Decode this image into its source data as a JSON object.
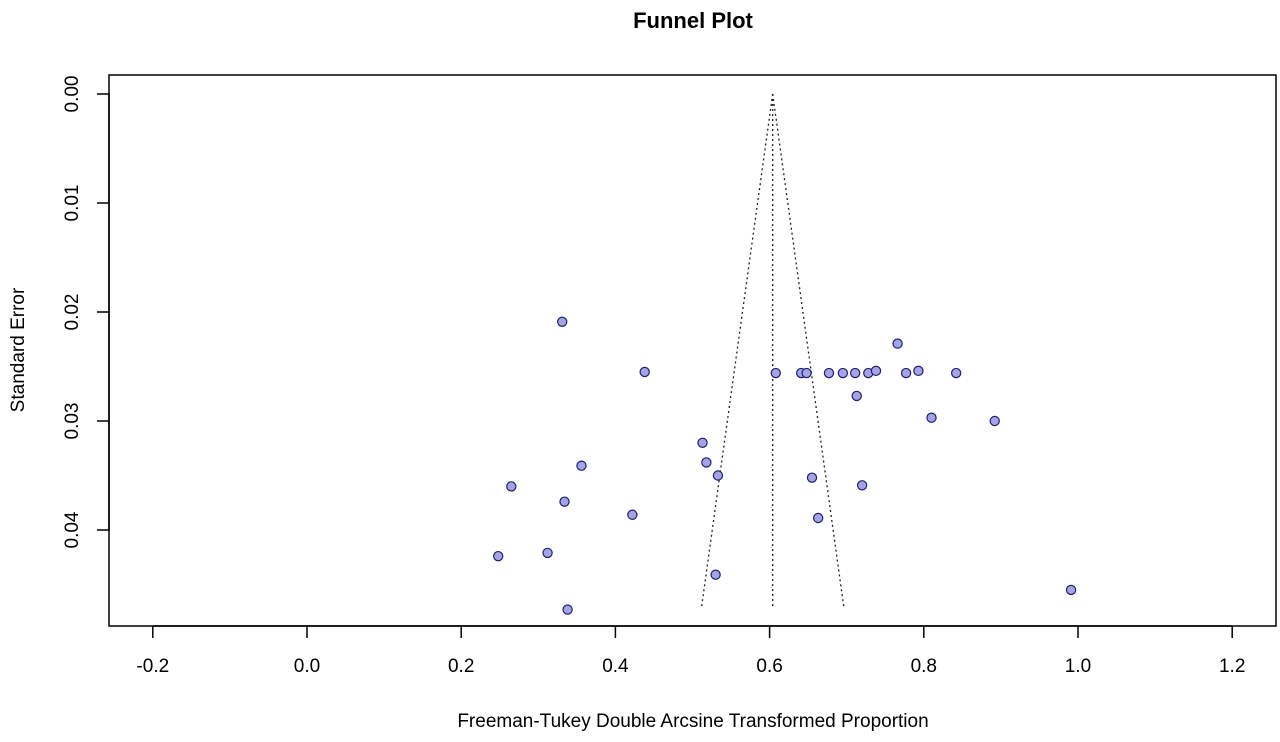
{
  "chart_data": {
    "type": "scatter",
    "title": "Funnel Plot",
    "xlabel": "Freeman-Tukey Double Arcsine Transformed Proportion",
    "ylabel": "Standard Error",
    "xlim": [
      -0.25,
      1.25
    ],
    "ylim": [
      0.0,
      0.0487
    ],
    "y_reversed": true,
    "x_ticks": [
      -0.2,
      0.0,
      0.2,
      0.4,
      0.6,
      0.8,
      1.0,
      1.2
    ],
    "x_tick_labels": [
      "-0.2",
      "0.0",
      "0.2",
      "0.4",
      "0.6",
      "0.8",
      "1.0",
      "1.2"
    ],
    "y_ticks": [
      0.0,
      0.01,
      0.02,
      0.03,
      0.04
    ],
    "y_tick_labels": [
      "0.00",
      "0.01",
      "0.02",
      "0.03",
      "0.04"
    ],
    "grid": false,
    "point_color": "#a3a3e6",
    "point_stroke": "#1f1f6b",
    "funnel": {
      "center": 0.604,
      "se_max": 0.0472,
      "z": 1.96,
      "style": "dotted"
    },
    "points": [
      {
        "x": 0.331,
        "y": 0.0209
      },
      {
        "x": 0.438,
        "y": 0.0255
      },
      {
        "x": 0.766,
        "y": 0.0229
      },
      {
        "x": 0.608,
        "y": 0.0256
      },
      {
        "x": 0.641,
        "y": 0.0256
      },
      {
        "x": 0.648,
        "y": 0.0256
      },
      {
        "x": 0.677,
        "y": 0.0256
      },
      {
        "x": 0.695,
        "y": 0.0256
      },
      {
        "x": 0.711,
        "y": 0.0256
      },
      {
        "x": 0.728,
        "y": 0.0256
      },
      {
        "x": 0.738,
        "y": 0.0254
      },
      {
        "x": 0.777,
        "y": 0.0256
      },
      {
        "x": 0.793,
        "y": 0.0254
      },
      {
        "x": 0.842,
        "y": 0.0256
      },
      {
        "x": 0.713,
        "y": 0.0277
      },
      {
        "x": 0.81,
        "y": 0.0297
      },
      {
        "x": 0.892,
        "y": 0.03
      },
      {
        "x": 0.513,
        "y": 0.032
      },
      {
        "x": 0.518,
        "y": 0.0338
      },
      {
        "x": 0.533,
        "y": 0.035
      },
      {
        "x": 0.356,
        "y": 0.0341
      },
      {
        "x": 0.265,
        "y": 0.036
      },
      {
        "x": 0.334,
        "y": 0.0374
      },
      {
        "x": 0.422,
        "y": 0.0386
      },
      {
        "x": 0.655,
        "y": 0.0352
      },
      {
        "x": 0.72,
        "y": 0.0359
      },
      {
        "x": 0.663,
        "y": 0.0389
      },
      {
        "x": 0.248,
        "y": 0.0424
      },
      {
        "x": 0.312,
        "y": 0.0421
      },
      {
        "x": 0.53,
        "y": 0.0441
      },
      {
        "x": 0.338,
        "y": 0.0473
      },
      {
        "x": 0.991,
        "y": 0.0455
      }
    ]
  }
}
